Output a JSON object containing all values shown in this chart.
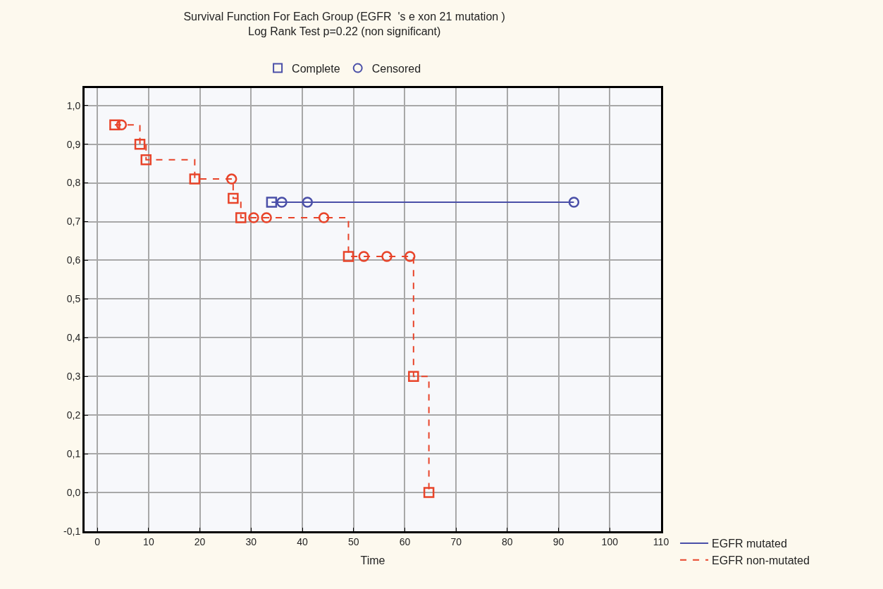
{
  "chart_data": {
    "type": "step",
    "title": "Survival Function For Each Group (EGFR  's e xon 21 mutation )",
    "subtitle": "Log Rank Test p=0.22 (non significant)",
    "xlabel": "Time",
    "xlim": [
      -2.5,
      110
    ],
    "xticks": [
      0,
      10,
      20,
      30,
      40,
      50,
      60,
      70,
      80,
      90,
      100,
      110
    ],
    "ylim": [
      -0.1,
      1.045
    ],
    "yticks": [
      {
        "value": -0.1,
        "label": "-0,1"
      },
      {
        "value": 0.0,
        "label": "0,0"
      },
      {
        "value": 0.1,
        "label": "0,1"
      },
      {
        "value": 0.2,
        "label": "0,2"
      },
      {
        "value": 0.3,
        "label": "0,3"
      },
      {
        "value": 0.4,
        "label": "0,4"
      },
      {
        "value": 0.5,
        "label": "0,5"
      },
      {
        "value": 0.6,
        "label": "0,6"
      },
      {
        "value": 0.7,
        "label": "0,7"
      },
      {
        "value": 0.8,
        "label": "0,8"
      },
      {
        "value": 0.9,
        "label": "0,9"
      },
      {
        "value": 1.0,
        "label": "1,0"
      }
    ],
    "grid": true,
    "legend": "bottom right",
    "series": [
      {
        "name": "EGFR mutated",
        "color": "#4a4fa8",
        "line_style": "solid",
        "marker": "none",
        "x": [
          34,
          93
        ],
        "values": [
          0.75,
          0.75
        ]
      },
      {
        "name": "EGFR non-mutated",
        "color": "#e8442a",
        "line_style": "dashed",
        "marker": "none",
        "x": [
          3.4,
          8.3,
          9.5,
          19,
          26.5,
          28,
          49,
          61.7,
          64.7
        ],
        "values": [
          0.95,
          0.9,
          0.86,
          0.81,
          0.76,
          0.71,
          0.61,
          0.3,
          0.0
        ]
      },
      {
        "name": "Complete",
        "type": "scatter",
        "color": "#4a4fa8",
        "marker": "square",
        "x": [
          34,
          3.4,
          8.3,
          9.5,
          19,
          26.5,
          28,
          49,
          61.7,
          64.7
        ],
        "values": [
          0.75,
          0.95,
          0.9,
          0.86,
          0.81,
          0.76,
          0.71,
          0.61,
          0.3,
          0.0
        ],
        "colors": [
          "#4a4fa8",
          "#e8442a",
          "#e8442a",
          "#e8442a",
          "#e8442a",
          "#e8442a",
          "#e8442a",
          "#e8442a",
          "#e8442a",
          "#e8442a"
        ]
      },
      {
        "name": "Censored",
        "type": "scatter",
        "color": "#4a4fa8",
        "marker": "circle",
        "x": [
          36,
          41,
          93,
          4.7,
          26.2,
          30.5,
          33,
          44.2,
          52,
          56.5,
          61
        ],
        "values": [
          0.75,
          0.75,
          0.75,
          0.95,
          0.81,
          0.71,
          0.71,
          0.71,
          0.61,
          0.61,
          0.61
        ],
        "colors": [
          "#4a4fa8",
          "#4a4fa8",
          "#4a4fa8",
          "#e8442a",
          "#e8442a",
          "#e8442a",
          "#e8442a",
          "#e8442a",
          "#e8442a",
          "#e8442a",
          "#e8442a"
        ]
      }
    ]
  }
}
